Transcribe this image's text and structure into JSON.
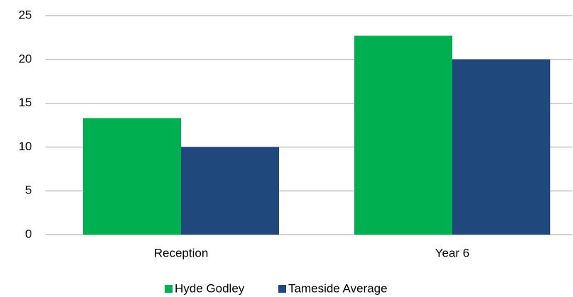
{
  "chart_data": {
    "type": "bar",
    "categories": [
      "Reception",
      "Year 6"
    ],
    "series": [
      {
        "name": "Hyde Godley",
        "color": "#00b050",
        "values": [
          13.3,
          22.7
        ]
      },
      {
        "name": "Tameside Average",
        "color": "#1f497d",
        "values": [
          10,
          20
        ]
      }
    ],
    "ylim": [
      0,
      25
    ],
    "yticks": [
      0,
      5,
      10,
      15,
      20,
      25
    ],
    "grid": true,
    "legend": "bottom"
  }
}
